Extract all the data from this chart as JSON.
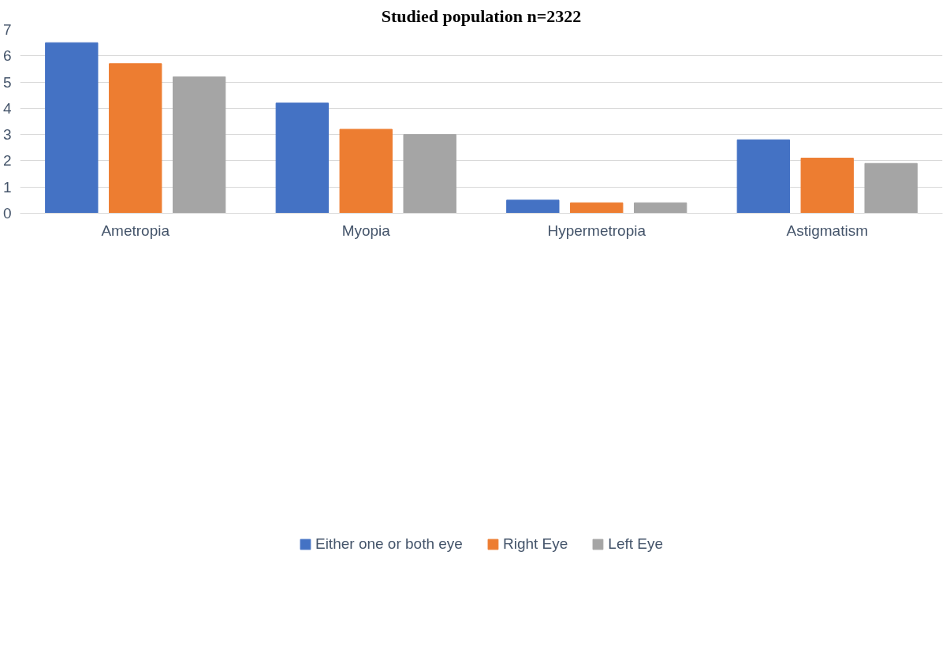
{
  "chart_data": {
    "type": "bar",
    "title": "Studied population n=2322",
    "categories": [
      "Ametropia",
      "Myopia",
      "Hypermetropia",
      "Astigmatism"
    ],
    "series": [
      {
        "name": "Either one or both eye",
        "color": "#4472c4",
        "values": [
          6.5,
          4.2,
          0.5,
          2.8
        ]
      },
      {
        "name": "Right Eye",
        "color": "#ed7d31",
        "values": [
          5.7,
          3.2,
          0.4,
          2.1
        ]
      },
      {
        "name": "Left Eye",
        "color": "#a5a5a5",
        "values": [
          5.2,
          3.0,
          0.4,
          1.9
        ]
      }
    ],
    "ylim": [
      0,
      7
    ],
    "yticks": [
      0,
      1,
      2,
      3,
      4,
      5,
      6,
      7
    ],
    "grid": "y",
    "legend": "bottom"
  }
}
